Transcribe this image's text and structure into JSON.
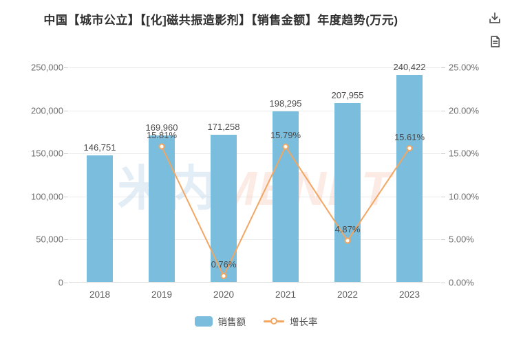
{
  "title": "中国【城市公立】【[化]磁共振造影剂】【销售金额】年度趋势(万元)",
  "toolbar": {
    "icons": [
      "download-icon",
      "report-document-icon"
    ]
  },
  "watermark": {
    "part_cn": "米内",
    "part_en": "MENET"
  },
  "colors": {
    "bar": "#7bbddc",
    "line": "#f2a662",
    "grid": "#ececec",
    "axis_text": "#6e6e6e",
    "label_text": "#4a4a4a"
  },
  "chart_data": {
    "type": "bar",
    "title": "中国【城市公立】【[化]磁共振振造影剂】【销售金额】年度趋势(万元)",
    "categories": [
      "2018",
      "2019",
      "2020",
      "2021",
      "2022",
      "2023"
    ],
    "series": [
      {
        "name": "销售额",
        "type": "bar",
        "values": [
          146751,
          169960,
          171258,
          198295,
          207955,
          240422
        ],
        "labels": [
          "146,751",
          "169,960",
          "171,258",
          "198,295",
          "207,955",
          "240,422"
        ],
        "axis": "left",
        "color": "#7bbddc"
      },
      {
        "name": "增长率",
        "type": "line",
        "values": [
          null,
          15.81,
          0.76,
          15.79,
          4.87,
          15.61
        ],
        "labels": [
          "",
          "15.81%",
          "0.76%",
          "15.79%",
          "4.87%",
          "15.61%"
        ],
        "axis": "right",
        "color": "#f2a662"
      }
    ],
    "left_axis": {
      "min": 0,
      "max": 250000,
      "ticks": [
        "0",
        "50,000",
        "100,000",
        "150,000",
        "200,000",
        "250,000"
      ]
    },
    "right_axis": {
      "min": 0,
      "max": 25,
      "ticks": [
        "0.00%",
        "5.00%",
        "10.00%",
        "15.00%",
        "20.00%",
        "25.00%"
      ]
    },
    "legend": [
      {
        "label": "销售额",
        "marker": "bar"
      },
      {
        "label": "增长率",
        "marker": "line"
      }
    ],
    "grid": true,
    "legend_position": "bottom"
  }
}
